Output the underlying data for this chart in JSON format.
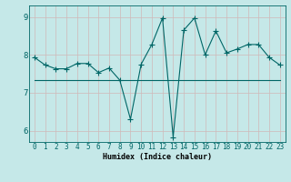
{
  "title": "",
  "xlabel": "Humidex (Indice chaleur)",
  "bg_color": "#c5e8e8",
  "line_color": "#006666",
  "grid_color": "#d0b8b8",
  "xlim": [
    -0.5,
    23.5
  ],
  "ylim": [
    5.7,
    9.3
  ],
  "yticks": [
    6,
    7,
    8,
    9
  ],
  "xticks": [
    0,
    1,
    2,
    3,
    4,
    5,
    6,
    7,
    8,
    9,
    10,
    11,
    12,
    13,
    14,
    15,
    16,
    17,
    18,
    19,
    20,
    21,
    22,
    23
  ],
  "line1_x": [
    0,
    1,
    2,
    3,
    4,
    5,
    6,
    7,
    8,
    9,
    10,
    11,
    12,
    13,
    14,
    15,
    16,
    17,
    18,
    19,
    20,
    21,
    22,
    23
  ],
  "line1_y": [
    7.93,
    7.73,
    7.63,
    7.63,
    7.77,
    7.77,
    7.53,
    7.65,
    7.33,
    6.3,
    7.75,
    8.27,
    8.97,
    5.83,
    8.65,
    8.97,
    8.0,
    8.63,
    8.05,
    8.15,
    8.27,
    8.27,
    7.93,
    7.73
  ],
  "line2_x": [
    0,
    1,
    2,
    3,
    4,
    5,
    6,
    7,
    8,
    9,
    10,
    11,
    12,
    13,
    14,
    15,
    16,
    17,
    18,
    19,
    20,
    21,
    22,
    23
  ],
  "line2_y": [
    7.33,
    7.33,
    7.33,
    7.33,
    7.33,
    7.33,
    7.33,
    7.33,
    7.33,
    7.33,
    7.33,
    7.33,
    7.33,
    7.33,
    7.33,
    7.33,
    7.33,
    7.33,
    7.33,
    7.33,
    7.33,
    7.33,
    7.33,
    7.33
  ],
  "marker": "+",
  "markersize": 4,
  "linewidth": 0.8,
  "label_fontsize": 6,
  "tick_fontsize": 5.5
}
